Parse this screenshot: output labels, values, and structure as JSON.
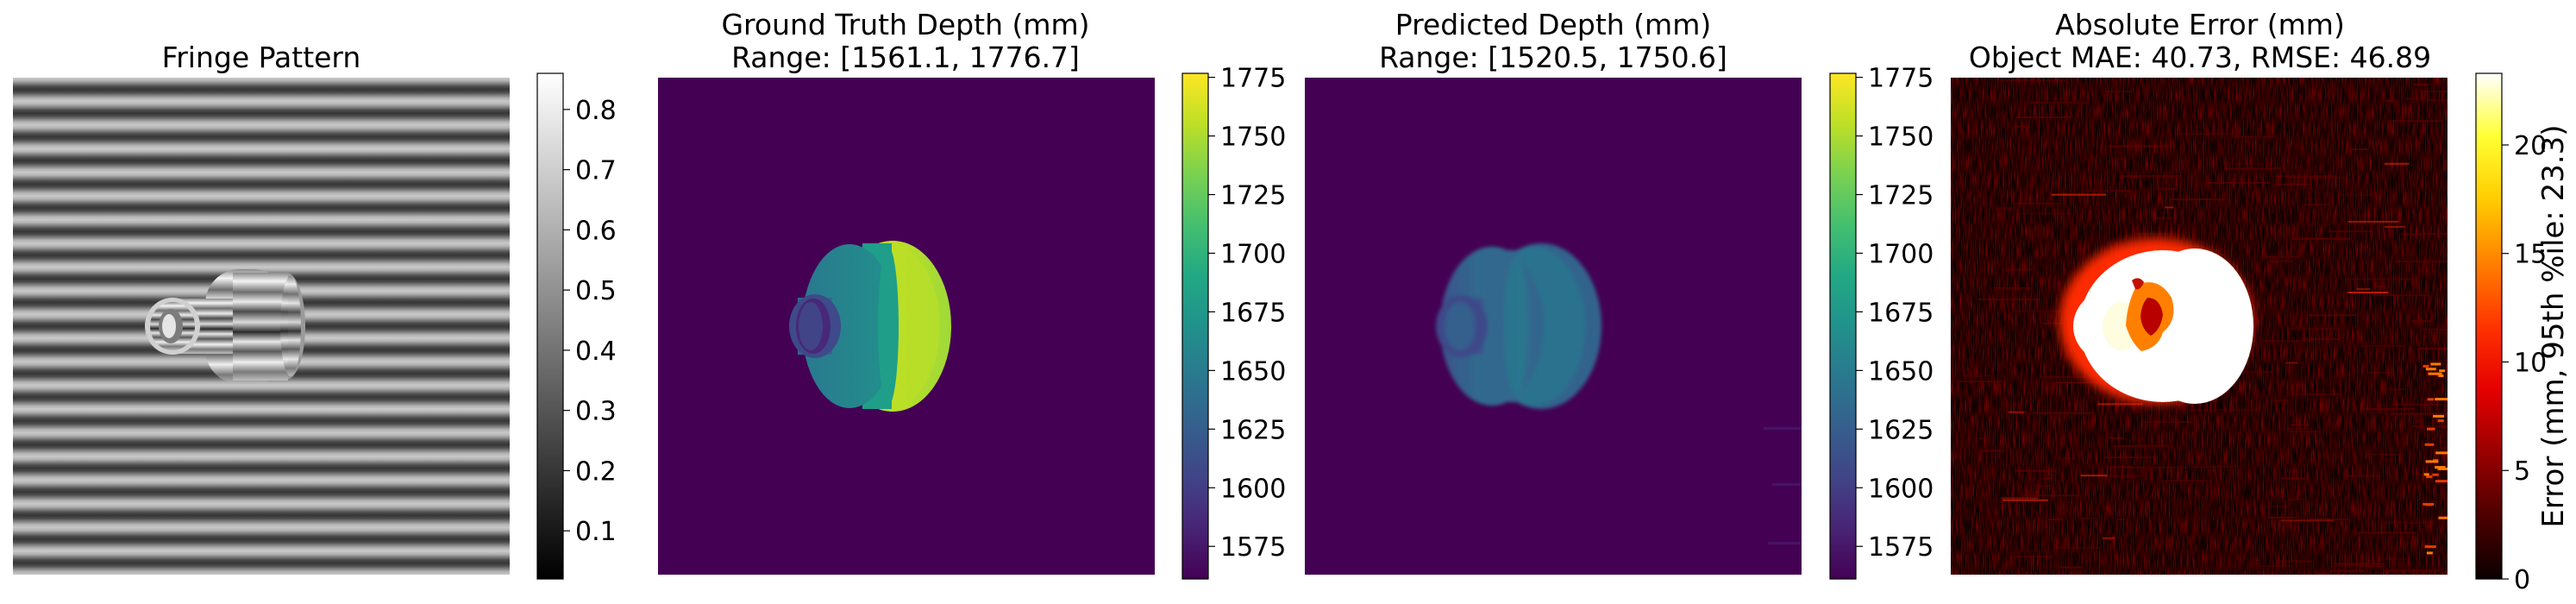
{
  "figure": {
    "panels": [
      {
        "id": "fringe",
        "title_lines": [
          "Fringe Pattern"
        ],
        "colormap": "gray",
        "colorbar": {
          "ticks": [
            0.1,
            0.2,
            0.3,
            0.4,
            0.5,
            0.6,
            0.7,
            0.8
          ],
          "tick_labels": [
            "0.1",
            "0.2",
            "0.3",
            "0.4",
            "0.5",
            "0.6",
            "0.7",
            "0.8"
          ],
          "range": [
            0.02,
            0.86
          ],
          "label": ""
        }
      },
      {
        "id": "gt-depth",
        "title_lines": [
          "Ground Truth Depth (mm)",
          "Range: [1561.1, 1776.7]"
        ],
        "colormap": "viridis",
        "colorbar": {
          "ticks": [
            1575,
            1600,
            1625,
            1650,
            1675,
            1700,
            1725,
            1750,
            1775
          ],
          "tick_labels": [
            "1575",
            "1600",
            "1625",
            "1650",
            "1675",
            "1700",
            "1725",
            "1750",
            "1775"
          ],
          "range": [
            1561.1,
            1776.7
          ],
          "label": ""
        }
      },
      {
        "id": "pred-depth",
        "title_lines": [
          "Predicted Depth (mm)",
          "Range: [1520.5, 1750.6]"
        ],
        "colormap": "viridis",
        "colorbar": {
          "ticks": [
            1575,
            1600,
            1625,
            1650,
            1675,
            1700,
            1725,
            1750,
            1775
          ],
          "tick_labels": [
            "1575",
            "1600",
            "1625",
            "1650",
            "1675",
            "1700",
            "1725",
            "1750",
            "1775"
          ],
          "range": [
            1561.1,
            1776.7
          ],
          "label": ""
        }
      },
      {
        "id": "abs-error",
        "title_lines": [
          "Absolute Error (mm)",
          "Object MAE: 40.73, RMSE: 46.89"
        ],
        "colormap": "hot",
        "colorbar": {
          "ticks": [
            0,
            5,
            10,
            15,
            20
          ],
          "tick_labels": [
            "0",
            "5",
            "10",
            "15",
            "20"
          ],
          "range": [
            0,
            23.3
          ],
          "label": "Error (mm, 95th %ile: 23.3)"
        }
      }
    ]
  },
  "chart_data": [
    {
      "type": "heatmap",
      "title": "Fringe Pattern",
      "colormap": "gray",
      "value_range": [
        0.02,
        0.86
      ],
      "fringe_orientation": "horizontal",
      "fringe_count": 21,
      "colorbar_ticks": [
        0.1,
        0.2,
        0.3,
        0.4,
        0.5,
        0.6,
        0.7,
        0.8
      ]
    },
    {
      "type": "heatmap",
      "title": "Ground Truth Depth (mm)",
      "subtitle": "Range: [1561.1, 1776.7]",
      "colormap": "viridis",
      "value_range": [
        1561.1,
        1776.7
      ],
      "background_depth": 1561.1,
      "object_depths": {
        "outer_rim": 1750,
        "main_body": 1660,
        "inner_cylinder": 1610,
        "bore": 1600
      },
      "colorbar_ticks": [
        1575,
        1600,
        1625,
        1650,
        1675,
        1700,
        1725,
        1750,
        1775
      ]
    },
    {
      "type": "heatmap",
      "title": "Predicted Depth (mm)",
      "subtitle": "Range: [1520.5, 1750.6]",
      "colormap": "viridis",
      "value_range": [
        1520.5,
        1750.6
      ],
      "background_depth": 1561.1,
      "object_depths": {
        "outer_rim": 1640,
        "main_body": 1620,
        "inner_cylinder": 1605,
        "bore": 1595
      },
      "colorbar_ticks": [
        1575,
        1600,
        1625,
        1650,
        1675,
        1700,
        1725,
        1750,
        1775
      ]
    },
    {
      "type": "heatmap",
      "title": "Absolute Error (mm)",
      "subtitle": "Object MAE: 40.73, RMSE: 46.89",
      "colormap": "hot",
      "value_range": [
        0,
        23.3
      ],
      "object_mae": 40.73,
      "object_rmse": 46.89,
      "percentile_95": 23.3,
      "colorbar_label": "Error (mm, 95th %ile: 23.3)",
      "colorbar_ticks": [
        0,
        5,
        10,
        15,
        20
      ]
    }
  ],
  "colors": {
    "viridis_dark": "#440154",
    "viridis_stops": [
      "#440154",
      "#482475",
      "#414487",
      "#355f8d",
      "#2a788e",
      "#21918c",
      "#22a884",
      "#44bf70",
      "#7ad151",
      "#bddf26",
      "#fde725"
    ],
    "gray_stops": [
      "#000000",
      "#ffffff"
    ],
    "hot_stops": [
      "#0b0000",
      "#4d0000",
      "#990000",
      "#e50000",
      "#ff3300",
      "#ff8000",
      "#ffcc00",
      "#ffff33",
      "#ffffff"
    ]
  }
}
